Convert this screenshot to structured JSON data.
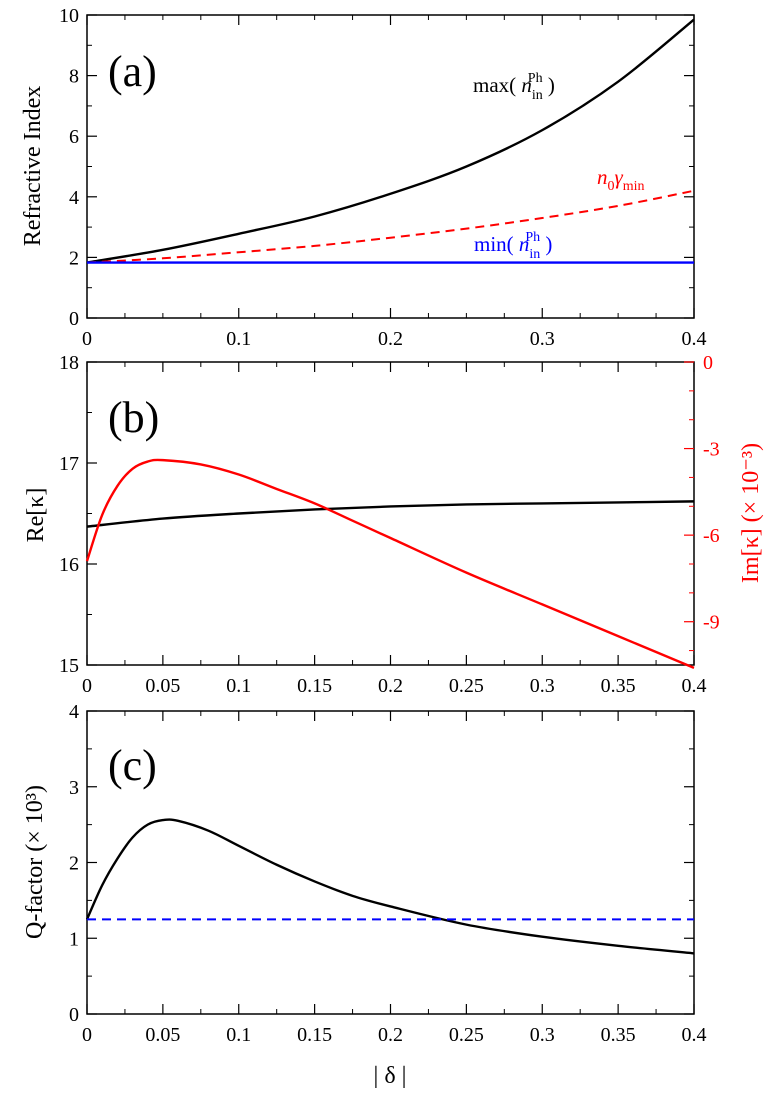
{
  "chart_data": [
    {
      "type": "line",
      "panel": "(a)",
      "ylabel": "Refractive Index",
      "xlabel": "",
      "xlim": [
        0,
        0.4
      ],
      "ylim": [
        0,
        10
      ],
      "xticks": [
        "0",
        "0.1",
        "0.2",
        "0.3",
        "0.4"
      ],
      "yticks": [
        "0",
        "2",
        "4",
        "6",
        "8",
        "10"
      ],
      "series": [
        {
          "name": "max( n_in^Ph )",
          "label_main": "max( ",
          "label_var": "n",
          "label_sub": "in",
          "label_sup": "Ph",
          "label_end": " )",
          "color": "#000000",
          "style": "solid",
          "x": [
            0,
            0.05,
            0.1,
            0.15,
            0.2,
            0.25,
            0.3,
            0.35,
            0.4
          ],
          "y": [
            1.83,
            2.25,
            2.78,
            3.35,
            4.1,
            5.0,
            6.2,
            7.8,
            9.85
          ]
        },
        {
          "name": "n_0 γ_min",
          "label_var": "n",
          "label_sub0": "0",
          "label_gamma": "γ",
          "label_sub": "min",
          "color": "#ff0000",
          "style": "dashed",
          "x": [
            0,
            0.05,
            0.1,
            0.15,
            0.2,
            0.25,
            0.3,
            0.35,
            0.4
          ],
          "y": [
            1.83,
            1.97,
            2.17,
            2.38,
            2.65,
            2.95,
            3.3,
            3.7,
            4.2
          ]
        },
        {
          "name": "min( n_in^Ph )",
          "label_main": "min( ",
          "label_var": "n",
          "label_sub": "in",
          "label_sup": "Ph",
          "label_end": " )",
          "color": "#0000ff",
          "style": "solid",
          "x": [
            0,
            0.4
          ],
          "y": [
            1.83,
            1.83
          ]
        }
      ]
    },
    {
      "type": "line",
      "panel": "(b)",
      "ylabel_left": "Re[κ]",
      "ylabel_right": "Im[κ] (× 10⁻³)",
      "xlabel": "",
      "xlim": [
        0,
        0.4
      ],
      "ylim_left": [
        15,
        18
      ],
      "ylim_right": [
        -10.5,
        0
      ],
      "xticks": [
        "0",
        "0.05",
        "0.1",
        "0.15",
        "0.2",
        "0.25",
        "0.3",
        "0.35",
        "0.4"
      ],
      "yticks_left": [
        "15",
        "16",
        "17",
        "18"
      ],
      "yticks_right": [
        "-9",
        "-6",
        "-3",
        "0"
      ],
      "series": [
        {
          "name": "Re[κ]",
          "axis": "left",
          "color": "#000000",
          "x": [
            0,
            0.05,
            0.1,
            0.15,
            0.2,
            0.25,
            0.3,
            0.35,
            0.4
          ],
          "y": [
            16.37,
            16.45,
            16.5,
            16.54,
            16.57,
            16.59,
            16.6,
            16.61,
            16.62
          ]
        },
        {
          "name": "Im[κ]",
          "axis": "right",
          "color": "#ff0000",
          "x": [
            0,
            0.01,
            0.02,
            0.03,
            0.04,
            0.05,
            0.075,
            0.1,
            0.125,
            0.15,
            0.175,
            0.2,
            0.25,
            0.3,
            0.35,
            0.4
          ],
          "y": [
            -6.9,
            -5.3,
            -4.3,
            -3.7,
            -3.45,
            -3.4,
            -3.55,
            -3.9,
            -4.4,
            -4.9,
            -5.5,
            -6.1,
            -7.3,
            -8.4,
            -9.5,
            -10.6
          ]
        }
      ]
    },
    {
      "type": "line",
      "panel": "(c)",
      "ylabel": "Q-factor (× 10³)",
      "xlabel": "| δ |",
      "xlim": [
        0,
        0.4
      ],
      "ylim": [
        0,
        4
      ],
      "xticks": [
        "0",
        "0.05",
        "0.1",
        "0.15",
        "0.2",
        "0.25",
        "0.3",
        "0.35",
        "0.4"
      ],
      "yticks": [
        "0",
        "1",
        "2",
        "3",
        "4"
      ],
      "series": [
        {
          "name": "Q-factor",
          "color": "#000000",
          "style": "solid",
          "x": [
            0,
            0.01,
            0.02,
            0.03,
            0.04,
            0.05,
            0.06,
            0.08,
            0.1,
            0.125,
            0.15,
            0.175,
            0.2,
            0.25,
            0.3,
            0.35,
            0.4
          ],
          "y": [
            1.25,
            1.7,
            2.05,
            2.33,
            2.5,
            2.56,
            2.55,
            2.42,
            2.22,
            1.97,
            1.75,
            1.56,
            1.42,
            1.18,
            1.02,
            0.9,
            0.8
          ]
        },
        {
          "name": "reference",
          "color": "#0000ff",
          "style": "dashed",
          "x": [
            0,
            0.4
          ],
          "y": [
            1.25,
            1.25
          ]
        }
      ]
    }
  ]
}
